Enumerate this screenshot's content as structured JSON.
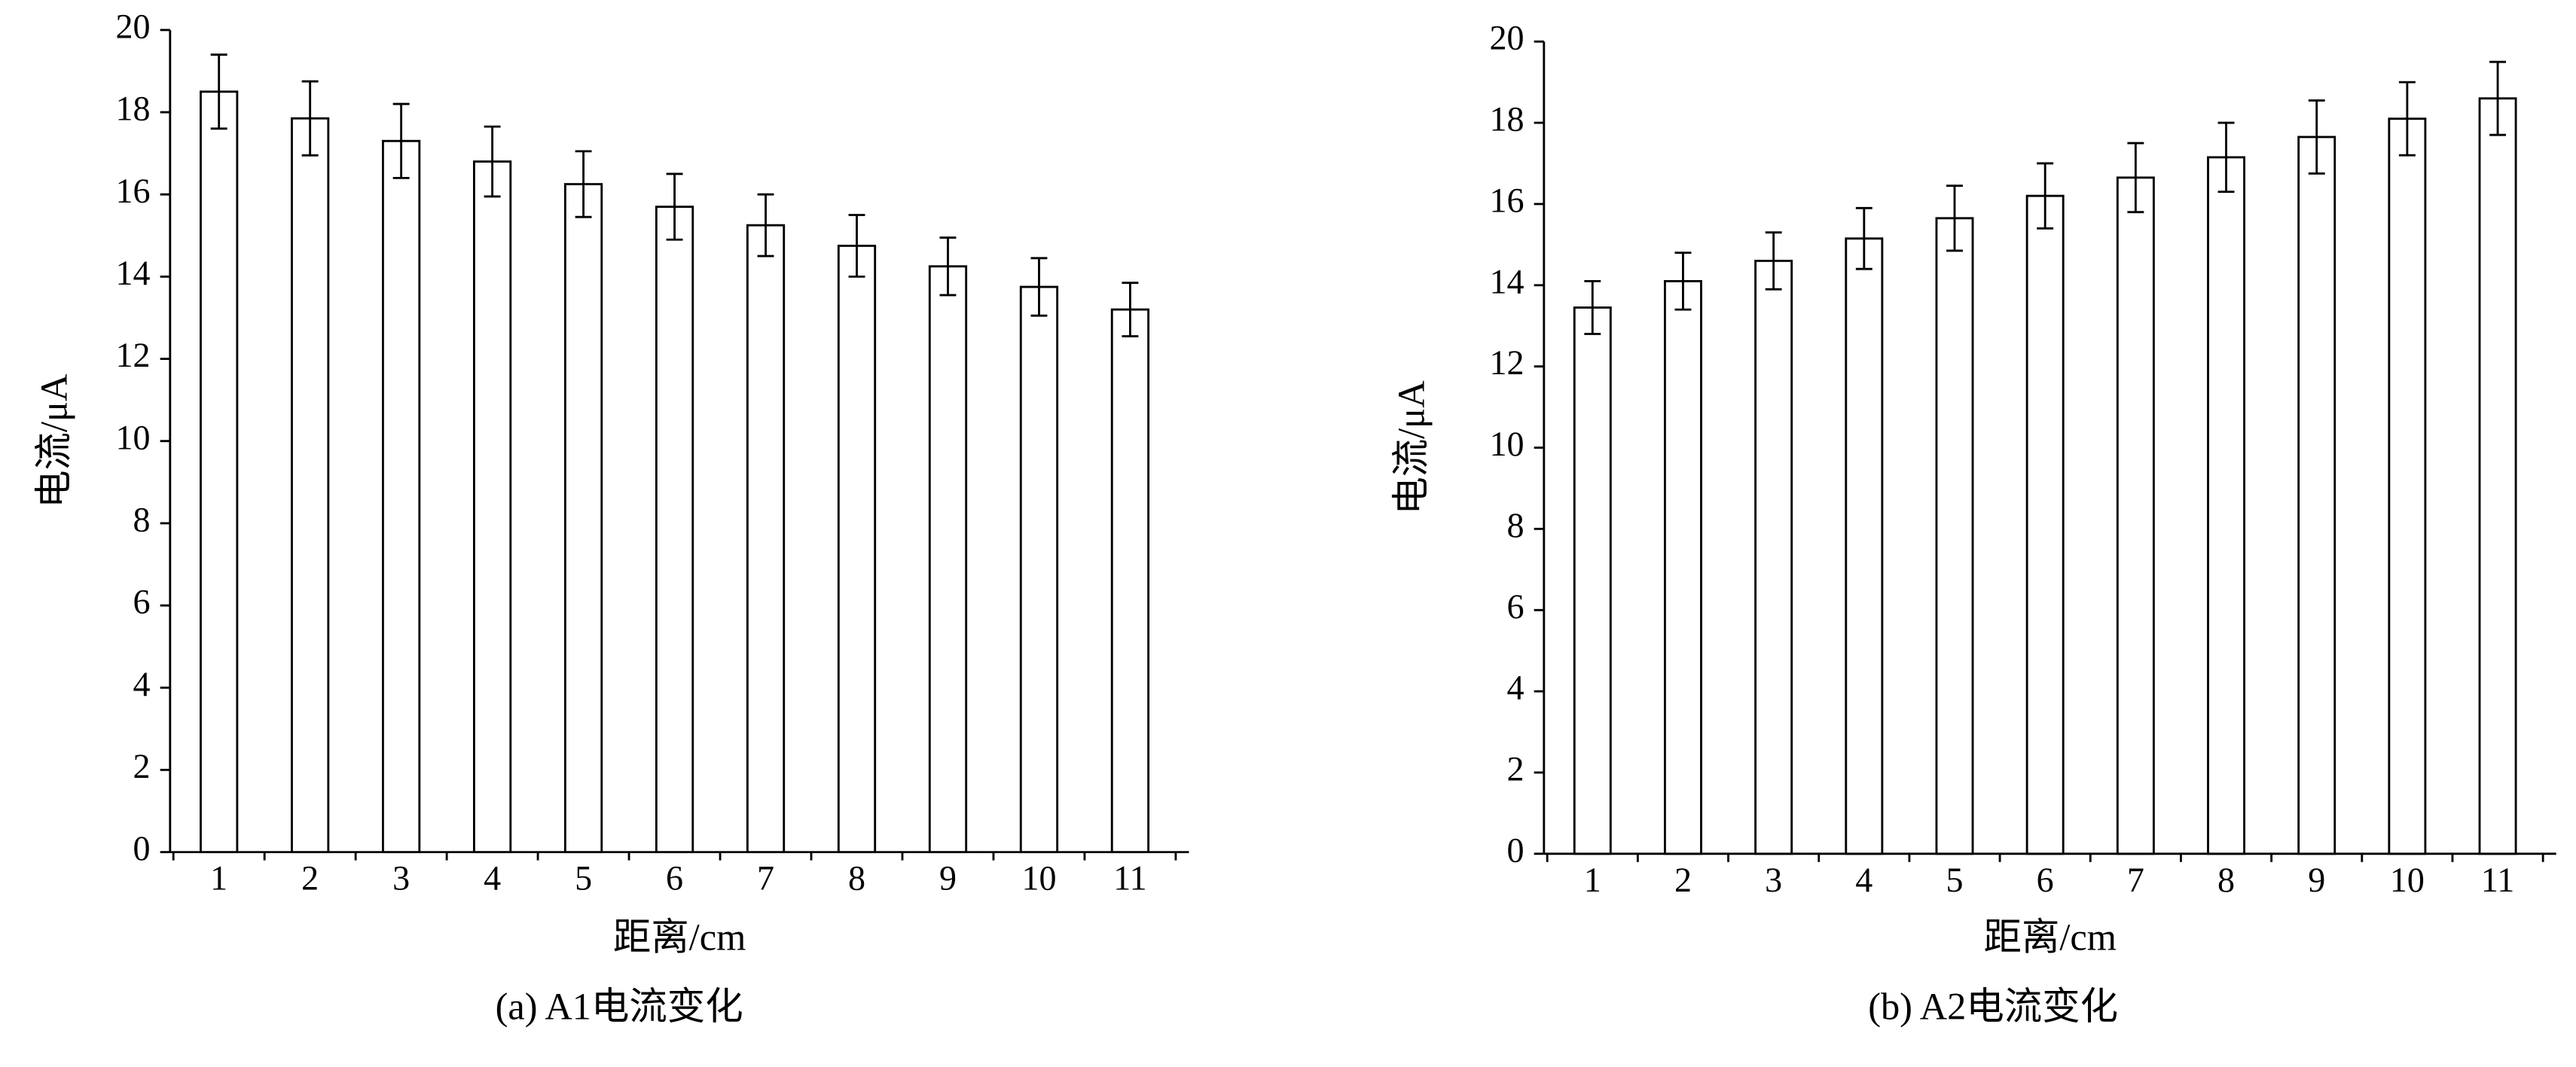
{
  "chart_data": [
    {
      "type": "bar",
      "title": "(a) A1电流变化",
      "x_label": "距离/cm",
      "y_label": "电流/μA",
      "categories": [
        "1",
        "2",
        "3",
        "4",
        "5",
        "6",
        "7",
        "8",
        "9",
        "10",
        "11"
      ],
      "values": [
        18.5,
        17.85,
        17.3,
        16.8,
        16.25,
        15.7,
        15.25,
        14.75,
        14.25,
        13.75,
        13.2
      ],
      "errors": [
        0.9,
        0.9,
        0.9,
        0.85,
        0.8,
        0.8,
        0.75,
        0.75,
        0.7,
        0.7,
        0.65
      ],
      "color": "#ffffff",
      "ylim": [
        0,
        20
      ],
      "yticks": [
        0,
        2,
        4,
        6,
        8,
        10,
        12,
        14,
        16,
        18,
        20
      ]
    },
    {
      "type": "bar",
      "title": "(b) A2电流变化",
      "x_label": "距离/cm",
      "y_label": "电流/μA",
      "categories": [
        "1",
        "2",
        "3",
        "4",
        "5",
        "6",
        "7",
        "8",
        "9",
        "10",
        "11"
      ],
      "values": [
        13.45,
        14.1,
        14.6,
        15.15,
        15.65,
        16.2,
        16.65,
        17.15,
        17.65,
        18.1,
        18.6
      ],
      "errors": [
        0.65,
        0.7,
        0.7,
        0.75,
        0.8,
        0.8,
        0.85,
        0.85,
        0.9,
        0.9,
        0.9
      ],
      "color": "#ffffff",
      "ylim": [
        0,
        20
      ],
      "yticks": [
        0,
        2,
        4,
        6,
        8,
        10,
        12,
        14,
        16,
        18,
        20
      ]
    }
  ]
}
